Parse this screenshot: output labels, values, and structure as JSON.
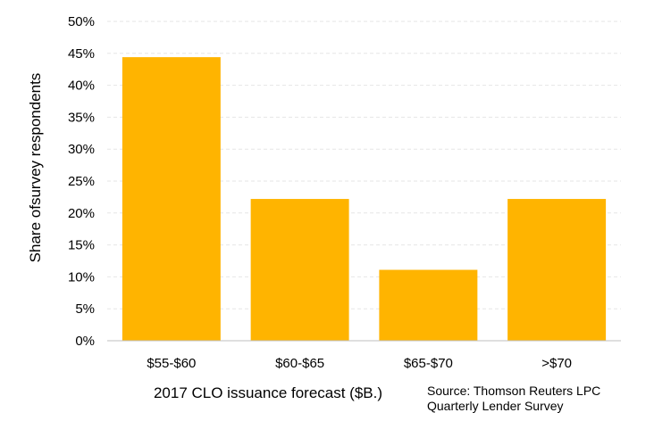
{
  "chart_data": {
    "type": "bar",
    "categories": [
      "$55-$60",
      "$60-$65",
      "$65-$70",
      ">$70"
    ],
    "values": [
      44.4,
      22.2,
      11.1,
      22.2
    ],
    "xlabel": "2017 CLO issuance forecast ($B.)",
    "ylabel": "Share ofsurvey  respondents",
    "ylim": [
      0,
      50
    ],
    "yticks": [
      0,
      5,
      10,
      15,
      20,
      25,
      30,
      35,
      40,
      45,
      50
    ],
    "ytick_format": "%",
    "grid": true,
    "legend": "none",
    "bar_color": "#FFB400",
    "grid_color": "#E6E6E6"
  },
  "source": {
    "line1": "Source: Thomson Reuters LPC",
    "line2": "Quarterly Lender Survey"
  }
}
